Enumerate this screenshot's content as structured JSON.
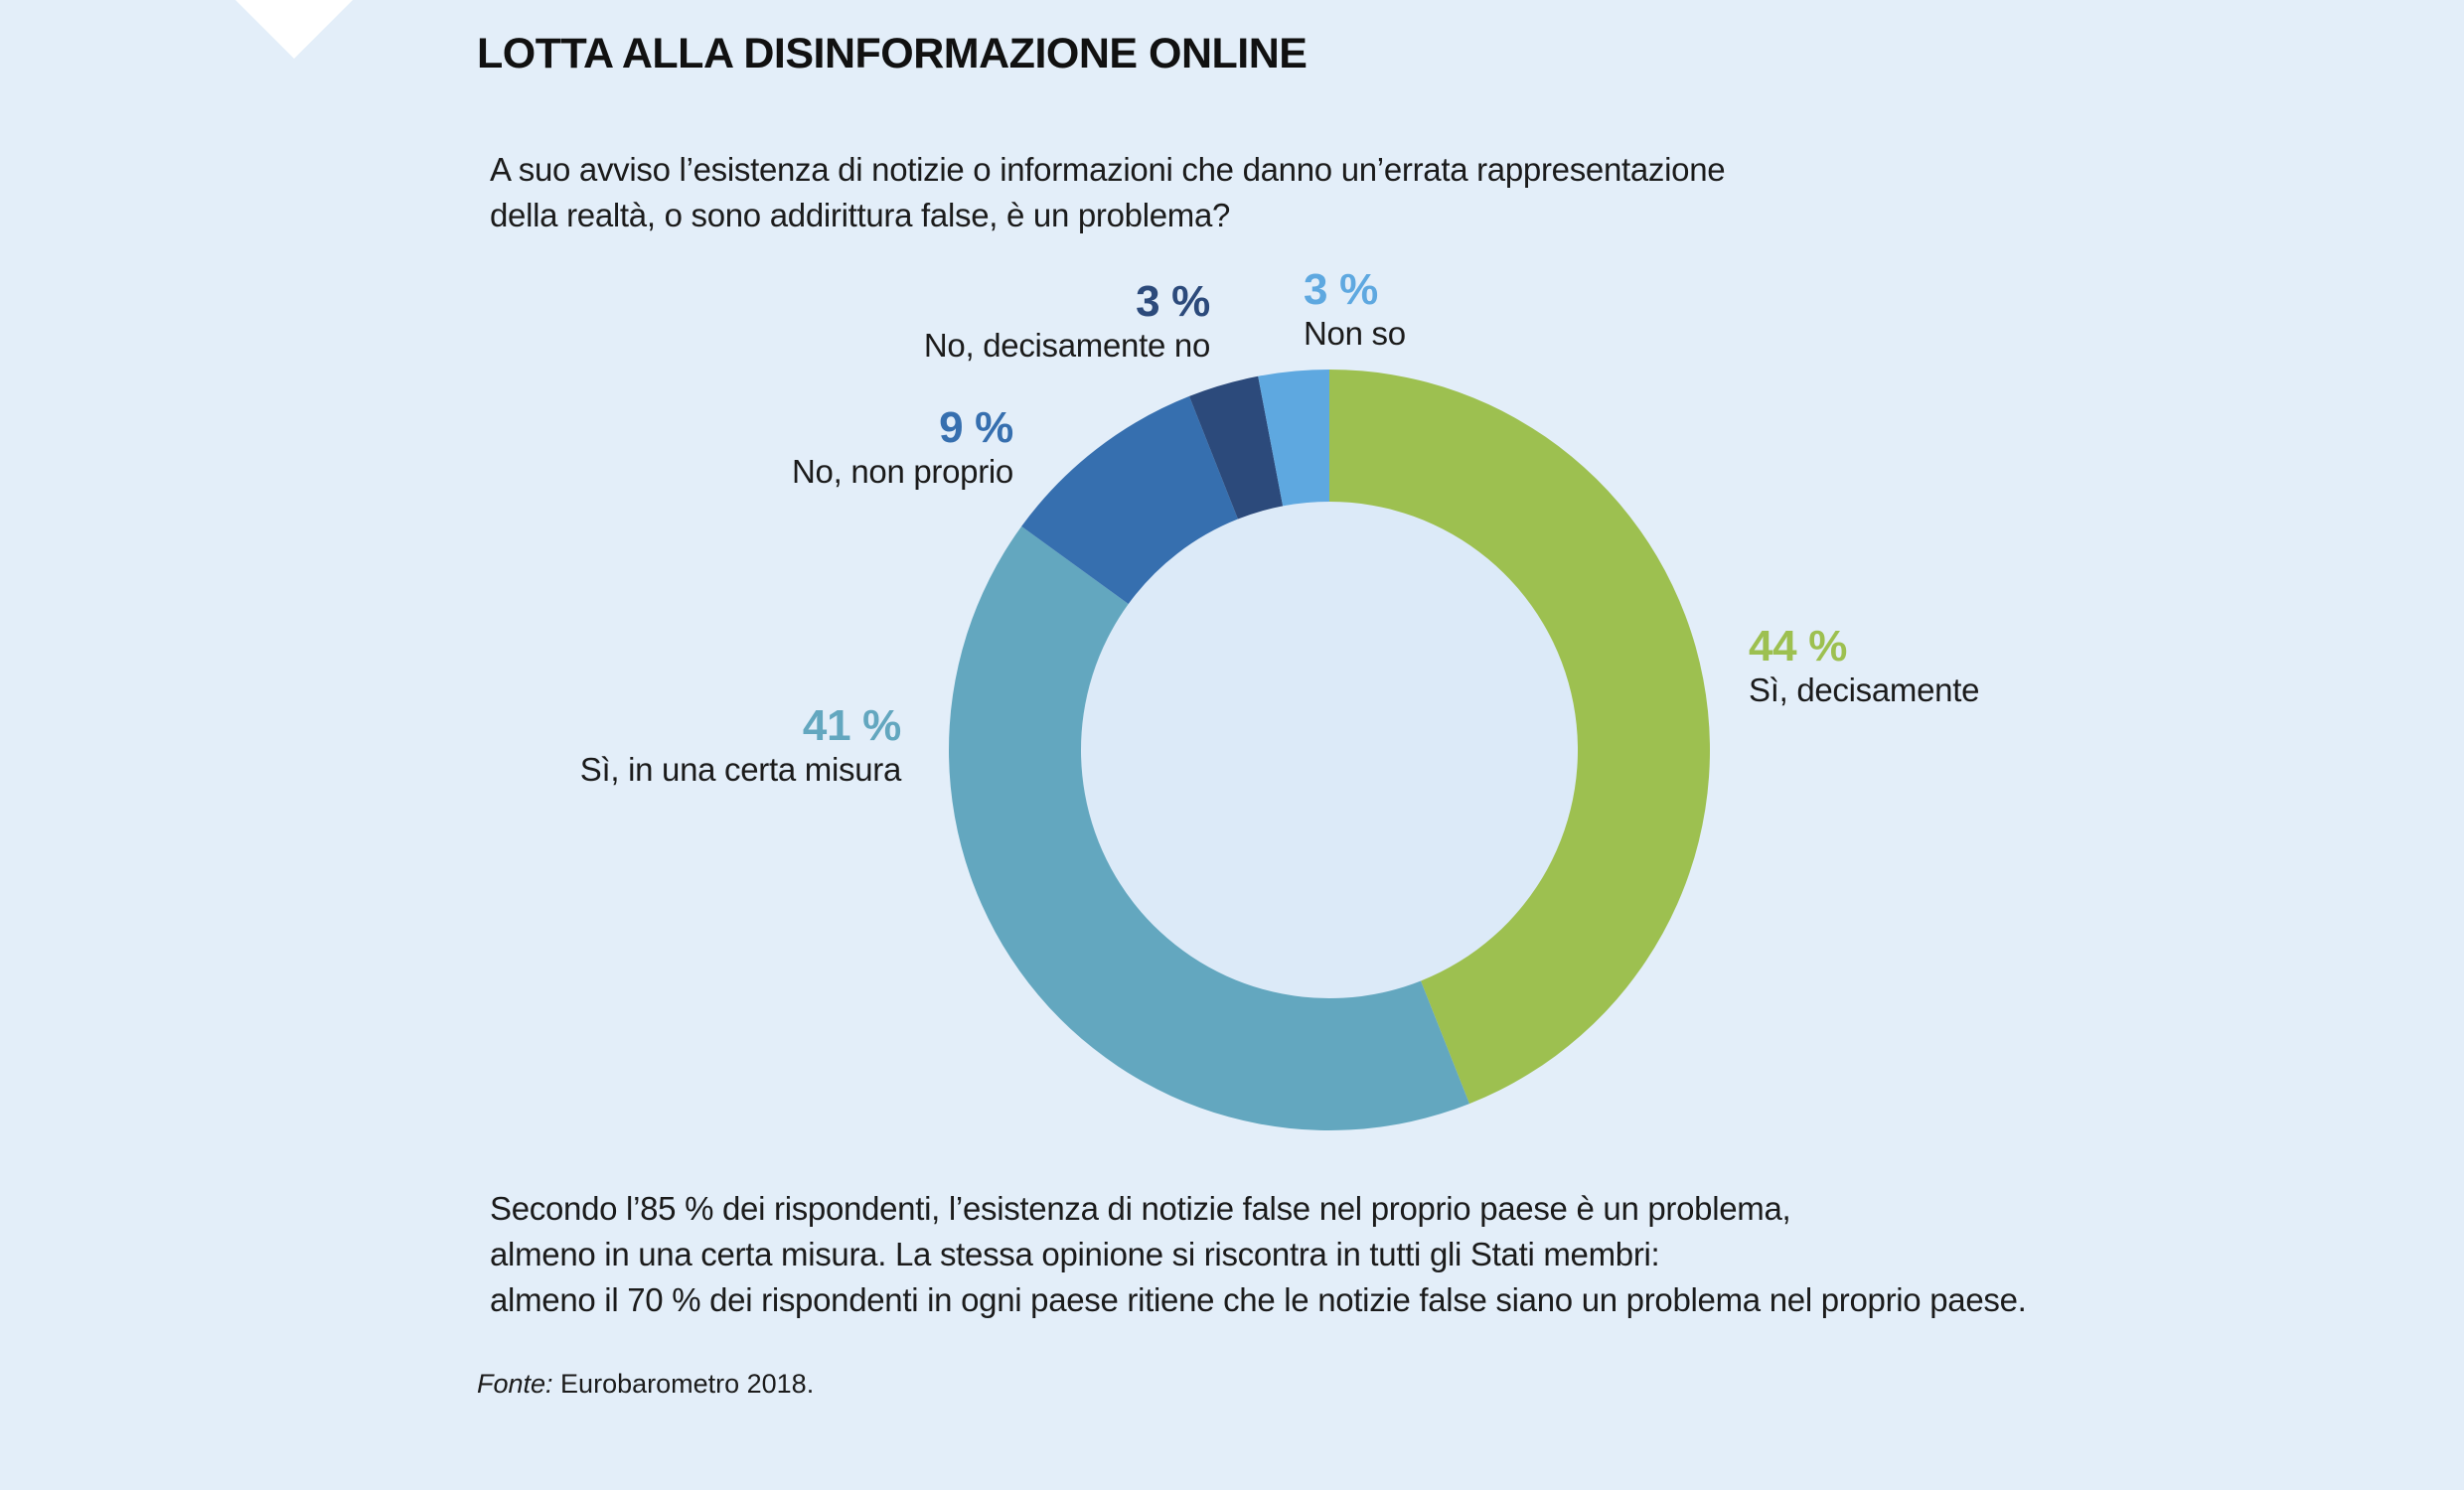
{
  "title": "LOTTA ALLA DISINFORMAZIONE ONLINE",
  "question": [
    "A suo avviso l’esistenza di notizie o informazioni che danno un’errata rappresentazione",
    "della realtà, o sono addirittura false, è un problema?"
  ],
  "note": [
    "Secondo l’85 % dei rispondenti, l’esistenza di notizie false nel proprio paese è un problema,",
    "almeno in una certa misura. La stessa opinione si riscontra in tutti gli Stati membri:",
    "almeno il 70 % dei rispondenti in ogni paese ritiene che le notizie false siano un problema nel proprio paese."
  ],
  "source": {
    "label": "Fonte:",
    "text": " Eurobarometro 2018."
  },
  "chart_data": {
    "type": "pie",
    "donut": true,
    "start": "top, clockwise",
    "slices": [
      {
        "label": "Sì, decisamente",
        "value": 44,
        "display": "44 %",
        "color": "#9dc050"
      },
      {
        "label": "Sì, in una certa misura",
        "value": 41,
        "display": "41 %",
        "color": "#63a7bf"
      },
      {
        "label": "No, non proprio",
        "value": 9,
        "display": "9 %",
        "color": "#366faf"
      },
      {
        "label": "No, decisamente no",
        "value": 3,
        "display": "3 %",
        "color": "#2c4a7b"
      },
      {
        "label": "Non so",
        "value": 3,
        "display": "3 %",
        "color": "#5ea8e0"
      }
    ]
  }
}
